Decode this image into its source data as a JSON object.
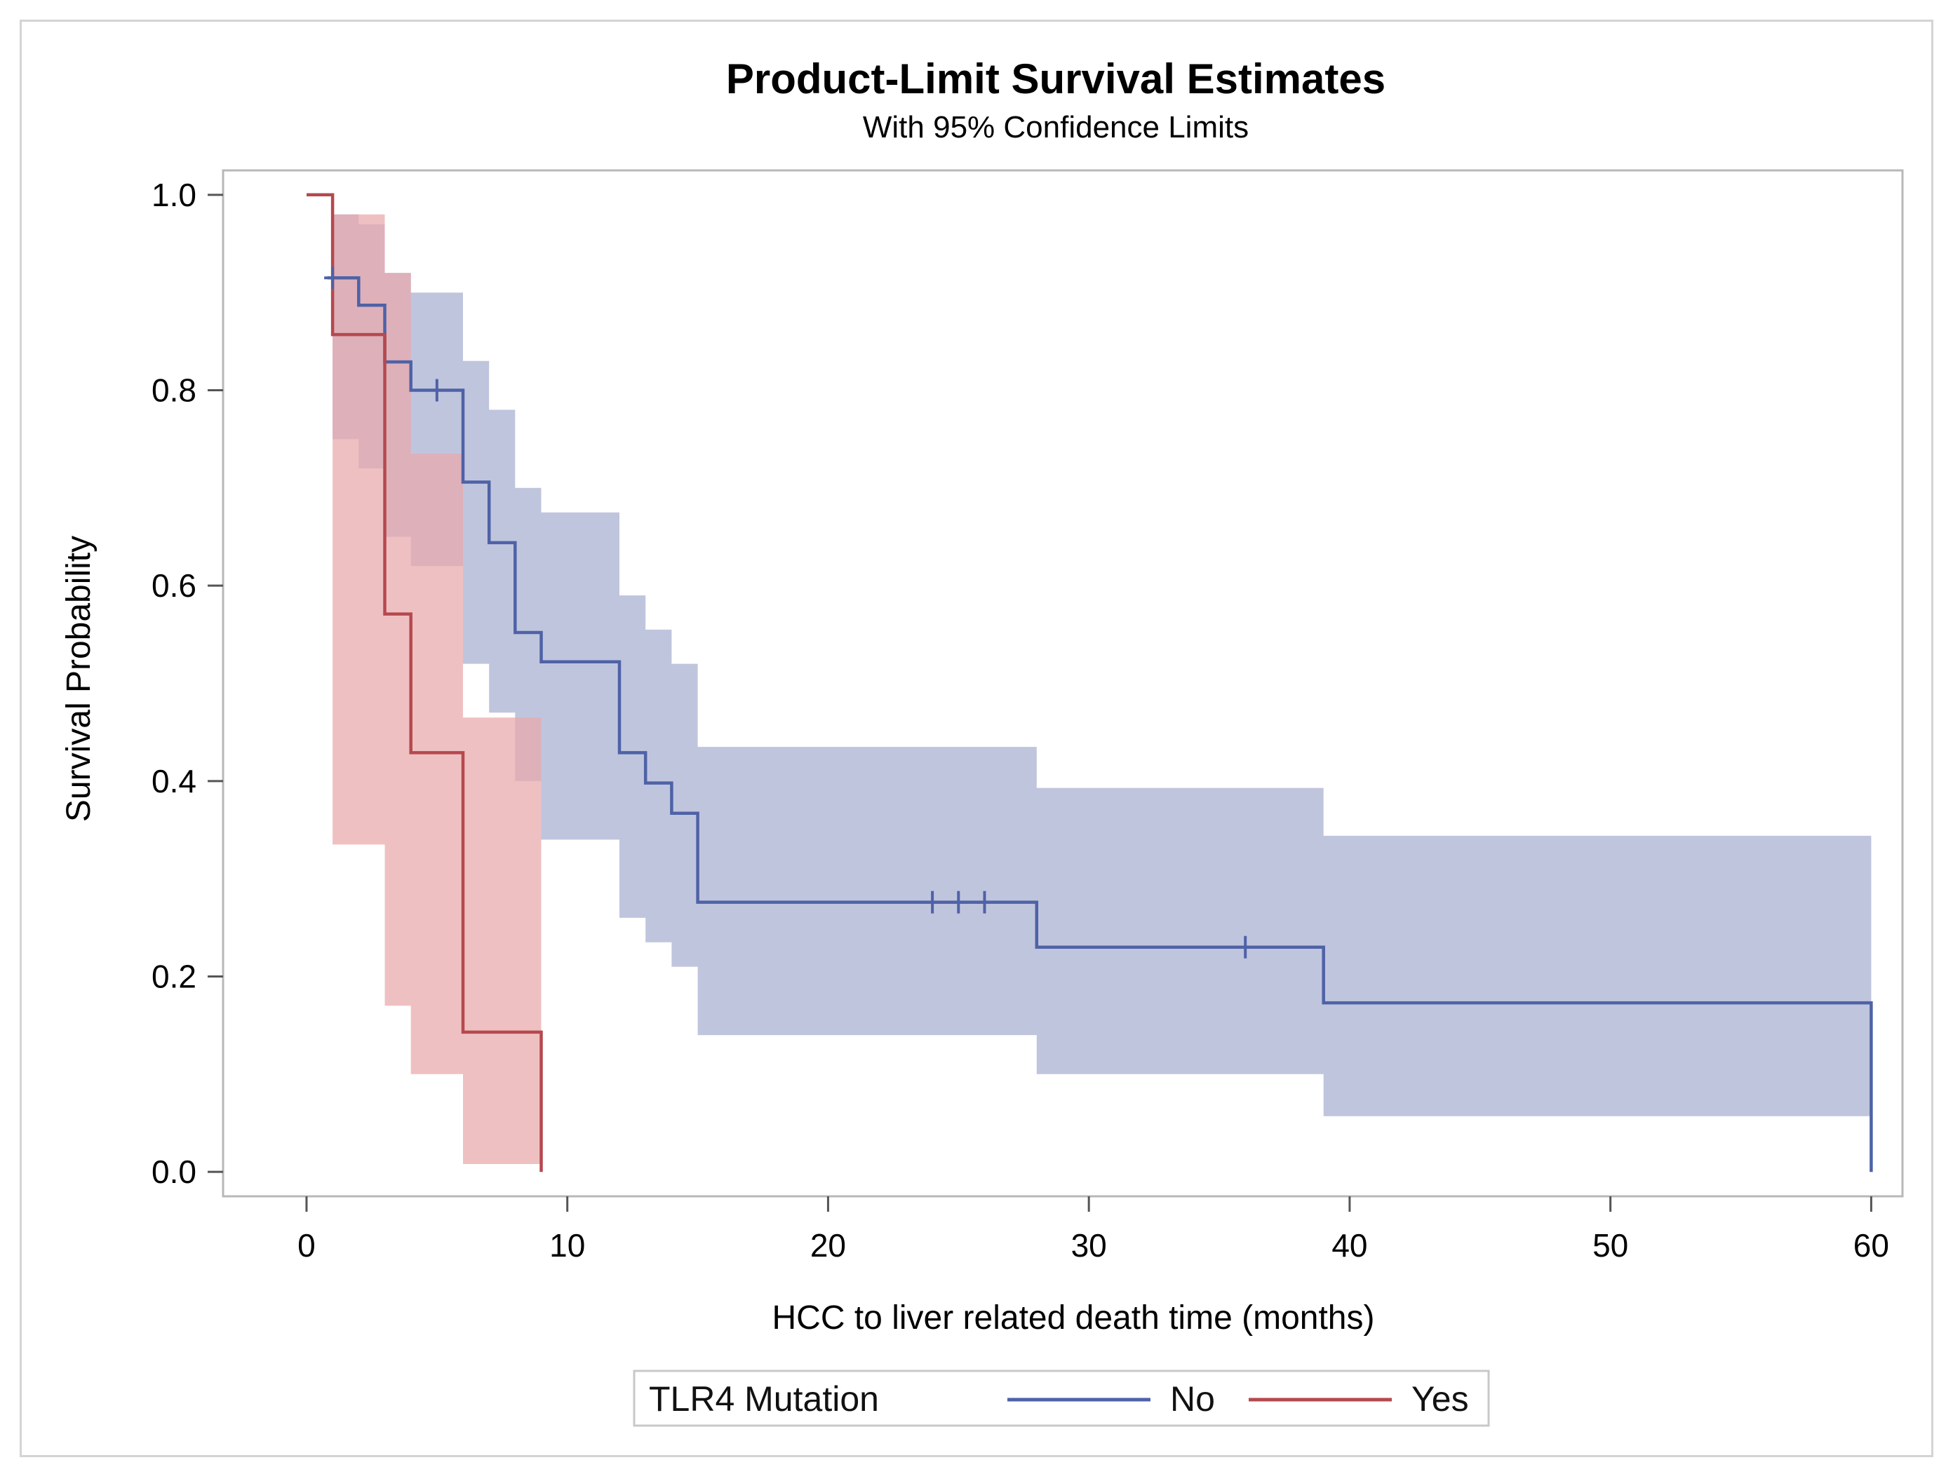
{
  "chart_data": {
    "type": "line",
    "title": "Product-Limit Survival Estimates",
    "subtitle": "With 95% Confidence Limits",
    "xlabel": "HCC to liver related death time (months)",
    "ylabel": "Survival Probability",
    "xlim": [
      -3.2,
      61.2
    ],
    "ylim": [
      -0.025,
      1.025
    ],
    "xticks": [
      0,
      10,
      20,
      30,
      40,
      50,
      60
    ],
    "yticks": [
      0.0,
      0.2,
      0.4,
      0.6,
      0.8,
      1.0
    ],
    "xtick_labels": [
      "0",
      "10",
      "20",
      "30",
      "40",
      "50",
      "60"
    ],
    "ytick_labels": [
      "0.0",
      "0.2",
      "0.4",
      "0.6",
      "0.8",
      "1.0"
    ],
    "grid": false,
    "legend": {
      "title": "TLR4 Mutation",
      "placement": "bottom"
    },
    "series": [
      {
        "name": "No",
        "color": "#4e62a6",
        "band_color": "#b9bfda",
        "steps": [
          [
            0.8,
            0.915
          ],
          [
            2,
            0.887
          ],
          [
            3,
            0.829
          ],
          [
            4,
            0.8
          ],
          [
            6,
            0.706
          ],
          [
            7,
            0.644
          ],
          [
            8,
            0.552
          ],
          [
            9,
            0.522
          ],
          [
            12,
            0.429
          ],
          [
            13,
            0.398
          ],
          [
            14,
            0.367
          ],
          [
            15,
            0.276
          ],
          [
            28,
            0.23
          ],
          [
            39,
            0.173
          ],
          [
            60,
            0.0
          ]
        ],
        "censored": [
          [
            1,
            0.915
          ],
          [
            5,
            0.8
          ],
          [
            24,
            0.276
          ],
          [
            25,
            0.276
          ],
          [
            26,
            0.276
          ],
          [
            36,
            0.23
          ]
        ],
        "ci": [
          [
            1,
            0.75,
            0.98
          ],
          [
            2,
            0.72,
            0.97
          ],
          [
            3,
            0.65,
            0.92
          ],
          [
            4,
            0.62,
            0.9
          ],
          [
            6,
            0.52,
            0.83
          ],
          [
            7,
            0.47,
            0.78
          ],
          [
            8,
            0.4,
            0.7
          ],
          [
            9,
            0.34,
            0.675
          ],
          [
            12,
            0.26,
            0.59
          ],
          [
            13,
            0.235,
            0.555
          ],
          [
            14,
            0.21,
            0.52
          ],
          [
            15,
            0.14,
            0.435
          ],
          [
            28,
            0.1,
            0.393
          ],
          [
            39,
            0.057,
            0.344
          ],
          [
            60,
            0.057,
            0.344
          ]
        ]
      },
      {
        "name": "Yes",
        "color": "#b5494e",
        "band_color": "#e9a8aa",
        "steps": [
          [
            0,
            1.0
          ],
          [
            1,
            0.857
          ],
          [
            3,
            0.571
          ],
          [
            4,
            0.429
          ],
          [
            6,
            0.143
          ],
          [
            9,
            0.0
          ]
        ],
        "censored": [],
        "ci": [
          [
            1,
            0.335,
            0.98
          ],
          [
            3,
            0.17,
            0.92
          ],
          [
            4,
            0.1,
            0.735
          ],
          [
            6,
            0.008,
            0.465
          ],
          [
            9,
            0.008,
            0.465
          ]
        ]
      }
    ]
  }
}
